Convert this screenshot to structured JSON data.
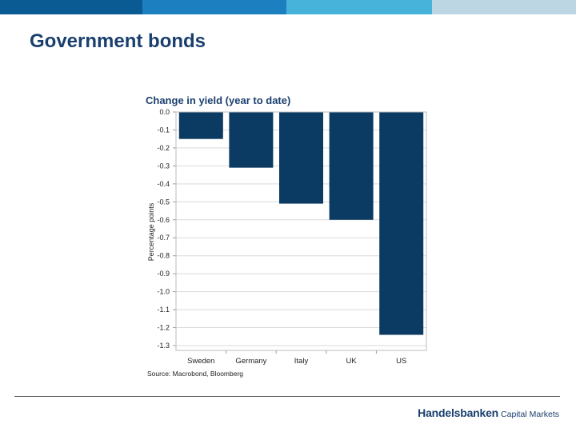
{
  "slide": {
    "title": "Government bonds",
    "top_bar_colors": [
      "#0a5a93",
      "#1c7fc0",
      "#47b3db",
      "#bcd7e3"
    ]
  },
  "chart_data": {
    "type": "bar",
    "title": "Change in yield (year to date)",
    "ylabel": "Percentage points",
    "xlabel": "",
    "categories": [
      "Sweden",
      "Germany",
      "Italy",
      "UK",
      "US"
    ],
    "values": [
      -0.15,
      -0.31,
      -0.51,
      -0.6,
      -1.24
    ],
    "ylim": [
      -1.3,
      0.0
    ],
    "yticks": [
      "0.0",
      "-0.1",
      "-0.2",
      "-0.3",
      "-0.4",
      "-0.5",
      "-0.6",
      "-0.7",
      "-0.8",
      "-0.9",
      "-1.0",
      "-1.1",
      "-1.2",
      "-1.3"
    ],
    "grid": true,
    "bar_color": "#0b3a62",
    "source": "Source: Macrobond, Bloomberg"
  },
  "footer": {
    "brand": "Handelsbanken",
    "unit": "Capital Markets"
  }
}
